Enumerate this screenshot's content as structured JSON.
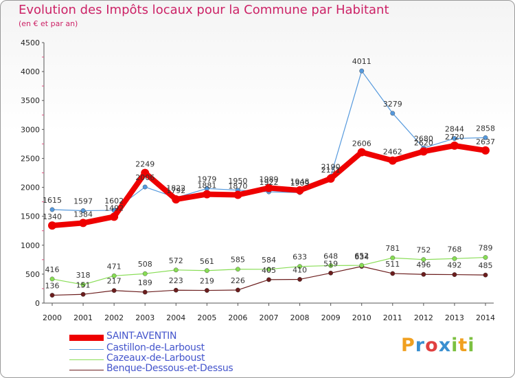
{
  "header": {
    "title": "Evolution des Impôts locaux pour la Commune par Habitant",
    "subtitle": "(en € et par an)"
  },
  "logo": {
    "text": "Proxiti",
    "letters": [
      {
        "ch": "P",
        "color": "#f0a020"
      },
      {
        "ch": "r",
        "color": "#3a8fd0"
      },
      {
        "ch": "o",
        "color": "#e04040"
      },
      {
        "ch": "x",
        "color": "#3a8fd0"
      },
      {
        "ch": "i",
        "color": "#7cc040"
      },
      {
        "ch": "t",
        "color": "#f0a020"
      },
      {
        "ch": "i",
        "color": "#7cc040"
      }
    ]
  },
  "chart_data": {
    "type": "line",
    "title": "Evolution des Impôts locaux pour la Commune par Habitant",
    "subtitle": "(en € et par an)",
    "x": [
      "2000",
      "2001",
      "2002",
      "2003",
      "2004",
      "2005",
      "2006",
      "2007",
      "2008",
      "2009",
      "2010",
      "2011",
      "2012",
      "2013",
      "2014"
    ],
    "ylim": [
      0,
      4500
    ],
    "yticks": [
      0,
      500,
      1000,
      1500,
      2000,
      2500,
      3000,
      3500,
      4000,
      4500
    ],
    "grid": false,
    "legend_position": "bottom-left",
    "series": [
      {
        "name": "SAINT-AVENTIN",
        "color": "#ee0000",
        "values": [
          1340,
          1384,
          1492,
          2249,
          1792,
          1881,
          1870,
          1989,
          1948,
          2151,
          2606,
          2462,
          2620,
          2720,
          2637
        ],
        "labels": [
          "1340",
          "1384",
          "1492",
          "2249",
          "1792",
          "1881",
          "1870",
          "1989",
          "1948",
          "2151",
          "2606",
          "2462",
          "2620",
          "2720",
          "2637"
        ]
      },
      {
        "name": "Castillon-de-Larboust",
        "color": "#5599dd",
        "values": [
          1615,
          1597,
          1602,
          2006,
          1822,
          1979,
          1950,
          1922,
          1909,
          2190,
          4011,
          3279,
          2680,
          2844,
          2858
        ],
        "labels": [
          "1615",
          "1597",
          "1602",
          "2006",
          "1822",
          "1979",
          "1950",
          "1922",
          "1909",
          "2190",
          "4011",
          "3279",
          "2680",
          "2844",
          "2858"
        ]
      },
      {
        "name": "Cazeaux-de-Larboust",
        "color": "#88dd55",
        "values": [
          416,
          318,
          471,
          508,
          572,
          561,
          585,
          584,
          633,
          648,
          652,
          781,
          752,
          768,
          789
        ],
        "labels": [
          "416",
          "318",
          "471",
          "508",
          "572",
          "561",
          "585",
          "584",
          "633",
          "648",
          "652",
          "781",
          "752",
          "768",
          "789"
        ]
      },
      {
        "name": "Benque-Dessous-et-Dessus",
        "color": "#6b1d1d",
        "values": [
          136,
          151,
          217,
          189,
          223,
          219,
          226,
          405,
          410,
          519,
          634,
          511,
          496,
          492,
          485
        ],
        "labels": [
          "136",
          "151",
          "217",
          "189",
          "223",
          "219",
          "226",
          "405",
          "410",
          "519",
          "634",
          "511",
          "496",
          "492",
          "485"
        ]
      }
    ]
  }
}
